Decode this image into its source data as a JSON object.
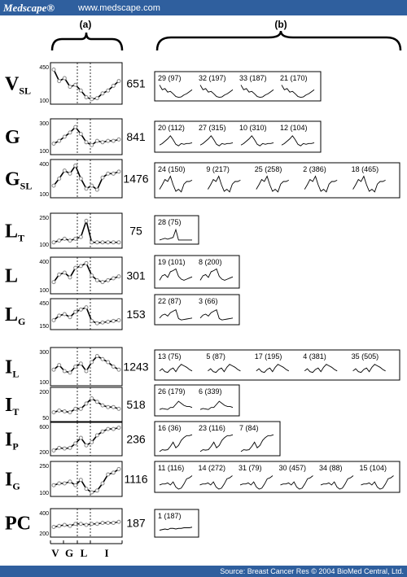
{
  "header": {
    "brand": "Medscape®",
    "url": "www.medscape.com"
  },
  "panels": {
    "a": "(a)",
    "b": "(b)"
  },
  "rows": [
    {
      "label": "V",
      "sub": "SL",
      "count": 651,
      "yticks": [
        450,
        100
      ],
      "profile": [
        420,
        300,
        330,
        240,
        260,
        200,
        130,
        110,
        120,
        170,
        200,
        250,
        300
      ],
      "clusters": [
        "29 (97)",
        "32 (197)",
        "33 (187)",
        "21 (170)"
      ]
    },
    {
      "label": "G",
      "sub": null,
      "count": 841,
      "yticks": [
        300,
        100
      ],
      "profile": [
        150,
        170,
        200,
        230,
        270,
        220,
        160,
        140,
        170,
        160,
        170,
        170,
        180
      ],
      "clusters": [
        "20 (112)",
        "27 (315)",
        "10 (310)",
        "12 (104)"
      ]
    },
    {
      "label": "G",
      "sub": "SL",
      "count": 1476,
      "yticks": [
        400,
        100
      ],
      "profile": [
        180,
        250,
        330,
        300,
        380,
        250,
        150,
        180,
        140,
        260,
        300,
        300,
        320
      ],
      "clusters": [
        "24 (150)",
        "9 (217)",
        "25 (258)",
        "2 (386)",
        "18 (465)"
      ]
    },
    {
      "label": "L",
      "sub": "T",
      "count": 75,
      "yticks": [
        250,
        100
      ],
      "profile": [
        110,
        120,
        130,
        120,
        130,
        140,
        230,
        110,
        110,
        110,
        110,
        110,
        110
      ],
      "clusters": [
        "28 (75)"
      ]
    },
    {
      "label": "L",
      "sub": null,
      "count": 301,
      "yticks": [
        400,
        100
      ],
      "profile": [
        180,
        260,
        280,
        230,
        330,
        350,
        380,
        250,
        200,
        180,
        200,
        220,
        240
      ],
      "clusters": [
        "19 (101)",
        "8 (200)"
      ]
    },
    {
      "label": "L",
      "sub": "G",
      "count": 153,
      "yticks": [
        450,
        150
      ],
      "profile": [
        220,
        280,
        300,
        260,
        330,
        360,
        390,
        210,
        180,
        190,
        200,
        210,
        220
      ],
      "clusters": [
        "22 (87)",
        "3 (66)"
      ]
    },
    {
      "label": "I",
      "sub": "L",
      "count": 1243,
      "yticks": [
        300,
        100
      ],
      "profile": [
        180,
        210,
        170,
        160,
        200,
        220,
        170,
        230,
        270,
        250,
        230,
        200,
        180
      ],
      "clusters": [
        "13 (75)",
        "5 (87)",
        "17 (195)",
        "4 (381)",
        "35 (505)"
      ]
    },
    {
      "label": "I",
      "sub": "T",
      "count": 518,
      "yticks": [
        200,
        50
      ],
      "profile": [
        80,
        90,
        85,
        80,
        100,
        100,
        130,
        160,
        140,
        120,
        110,
        110,
        100
      ],
      "clusters": [
        "26 (179)",
        "6 (339)"
      ]
    },
    {
      "label": "I",
      "sub": "P",
      "count": 236,
      "yticks": [
        600,
        200
      ],
      "profile": [
        220,
        260,
        250,
        260,
        330,
        420,
        300,
        350,
        460,
        520,
        560,
        560,
        580
      ],
      "clusters": [
        "16 (36)",
        "23 (116)",
        "7 (84)"
      ]
    },
    {
      "label": "I",
      "sub": "G",
      "count": 1116,
      "yticks": [
        250,
        100
      ],
      "profile": [
        140,
        150,
        150,
        160,
        140,
        170,
        120,
        100,
        110,
        150,
        200,
        210,
        230
      ],
      "clusters": [
        "11 (116)",
        "14 (272)",
        "31 (79)",
        "30 (457)",
        "34 (88)",
        "15 (104)"
      ]
    },
    {
      "label": "PC",
      "sub": null,
      "count": 187,
      "yticks": [
        400,
        200
      ],
      "profile": [
        260,
        270,
        280,
        270,
        290,
        290,
        280,
        290,
        290,
        300,
        300,
        300,
        310
      ],
      "clusters": [
        "1 (187)"
      ]
    }
  ],
  "x_labels": [
    "V",
    "G",
    "L",
    "I"
  ],
  "footer": "Source: Breast Cancer Res © 2004 BioMed Central, Ltd."
}
